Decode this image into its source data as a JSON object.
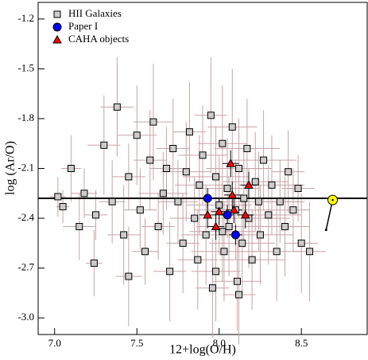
{
  "chart_data": {
    "type": "scatter",
    "xlabel": "12+log(O/H)",
    "ylabel": "log (Ar/O)",
    "xlim": [
      6.9,
      8.9
    ],
    "ylim": [
      -3.1,
      -1.1
    ],
    "xticks": [
      {
        "value": 7,
        "label": "7.0"
      },
      7.5,
      {
        "value": 8,
        "label": "8.0"
      },
      8.5
    ],
    "yticks": [
      -1.2,
      -1.5,
      -1.8,
      -2.1,
      -2.4,
      -2.7,
      {
        "value": -3,
        "label": "-3.0"
      }
    ],
    "legend": "upper left",
    "reference_line": -2.28,
    "sun": {
      "x": 8.69,
      "y": -2.29,
      "color": "#ffff00"
    },
    "sun_track_end": {
      "x": 8.65,
      "y": -2.47
    },
    "series": [
      {
        "name": "HII Galaxies",
        "marker": "square",
        "color": "#cccccc",
        "error_color": "#c9a3a6",
        "x": [
          7.02,
          7.05,
          7.1,
          7.15,
          7.18,
          7.24,
          7.25,
          7.3,
          7.35,
          7.38,
          7.42,
          7.45,
          7.5,
          7.52,
          7.55,
          7.58,
          7.6,
          7.63,
          7.66,
          7.7,
          7.72,
          7.75,
          7.78,
          7.8,
          7.82,
          7.85,
          7.87,
          7.88,
          7.9,
          7.92,
          7.95,
          7.96,
          7.98,
          8.0,
          8.02,
          8.03,
          8.05,
          8.06,
          8.08,
          8.1,
          8.11,
          8.12,
          8.14,
          8.15,
          8.17,
          8.18,
          8.2,
          8.22,
          8.24,
          8.25,
          8.27,
          8.3,
          8.32,
          8.35,
          8.37,
          8.4,
          8.42,
          8.45,
          8.48,
          8.5,
          8.55,
          8.12,
          7.68,
          7.45,
          7.98,
          8.02
        ],
        "y": [
          -2.27,
          -2.33,
          -2.1,
          -2.45,
          -2.25,
          -2.67,
          -2.38,
          -1.96,
          -2.3,
          -1.73,
          -2.5,
          -2.15,
          -1.9,
          -2.35,
          -2.6,
          -2.05,
          -1.82,
          -2.45,
          -2.25,
          -2.72,
          -1.98,
          -2.3,
          -2.55,
          -2.12,
          -1.88,
          -2.4,
          -2.65,
          -2.2,
          -2.02,
          -2.5,
          -1.78,
          -2.82,
          -2.15,
          -2.32,
          -1.95,
          -2.6,
          -2.22,
          -2.45,
          -1.85,
          -2.35,
          -2.78,
          -2.1,
          -2.55,
          -2.28,
          -1.98,
          -2.4,
          -2.65,
          -2.18,
          -2.3,
          -2.5,
          -2.05,
          -2.38,
          -2.2,
          -2.6,
          -2.3,
          -2.45,
          -2.12,
          -2.35,
          -2.22,
          -2.55,
          -2.6,
          -2.86,
          -2.1,
          -2.75,
          -2.72,
          -2.48
        ],
        "xerr": [
          0.05,
          0.04,
          0.06,
          0.1,
          0.08,
          0.05,
          0.07,
          0.1,
          0.08,
          0.1,
          0.1,
          0.1,
          0.12,
          0.1,
          0.08,
          0.1,
          0.12,
          0.1,
          0.15,
          0.1,
          0.1,
          0.12,
          0.1,
          0.15,
          0.1,
          0.15,
          0.12,
          0.15,
          0.15,
          0.15,
          0.1,
          0.1,
          0.2,
          0.2,
          0.15,
          0.2,
          0.2,
          0.2,
          0.15,
          0.25,
          0.15,
          0.2,
          0.2,
          0.25,
          0.2,
          0.25,
          0.2,
          0.2,
          0.25,
          0.2,
          0.2,
          0.2,
          0.2,
          0.15,
          0.15,
          0.15,
          0.1,
          0.1,
          0.1,
          0.1,
          0.1,
          0.1,
          0.1,
          0.08,
          0.15,
          0.2
        ],
        "yerr": [
          0.12,
          0.1,
          0.2,
          0.2,
          0.15,
          0.2,
          0.15,
          0.3,
          0.25,
          0.3,
          0.3,
          0.2,
          0.3,
          0.25,
          0.2,
          0.3,
          0.35,
          0.2,
          0.25,
          0.3,
          0.3,
          0.25,
          0.3,
          0.3,
          0.3,
          0.25,
          0.3,
          0.3,
          0.3,
          0.3,
          0.35,
          0.3,
          0.3,
          0.3,
          0.35,
          0.3,
          0.3,
          0.3,
          0.35,
          0.3,
          0.3,
          0.3,
          0.3,
          0.3,
          0.3,
          0.3,
          0.3,
          0.3,
          0.3,
          0.3,
          0.3,
          0.3,
          0.3,
          0.3,
          0.25,
          0.3,
          0.25,
          0.25,
          0.2,
          0.3,
          0.3,
          0.3,
          0.25,
          0.3,
          0.3,
          0.3
        ]
      },
      {
        "name": "Paper I",
        "marker": "circle",
        "color": "#0000ff",
        "error_color": "#000000",
        "x": [
          7.93,
          8.05,
          8.1
        ],
        "y": [
          -2.28,
          -2.38,
          -2.5
        ],
        "xerr": [
          0.04,
          0.04,
          0.04
        ],
        "yerr": [
          0.06,
          0.06,
          0.06
        ]
      },
      {
        "name": "CAHA objects",
        "marker": "triangle",
        "color": "#ff0000",
        "error_color": "#000000",
        "x": [
          8.07,
          8.18,
          8.08,
          7.93,
          8.0,
          7.98,
          8.16,
          8.09
        ],
        "y": [
          -2.07,
          -2.2,
          -2.26,
          -2.38,
          -2.36,
          -2.45,
          -2.38,
          -2.35
        ],
        "xerr": [
          0.05,
          0.05,
          0.05,
          0.05,
          0.05,
          0.05,
          0.05,
          0.05
        ],
        "yerr": [
          0.08,
          0.08,
          0.08,
          0.08,
          0.08,
          0.08,
          0.08,
          0.08
        ]
      }
    ]
  }
}
